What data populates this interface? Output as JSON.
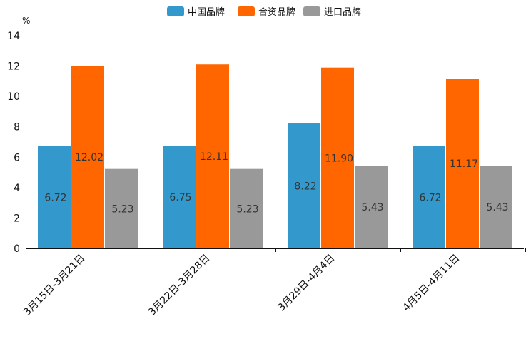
{
  "chart_data": {
    "type": "bar",
    "ylabel": "%",
    "ylim": [
      0,
      14
    ],
    "yticks": [
      0,
      2,
      4,
      6,
      8,
      10,
      12,
      14
    ],
    "categories": [
      "3月15日-3月21日",
      "3月22日-3月28日",
      "3月29日-4月4日",
      "4月5日-4月11日"
    ],
    "series": [
      {
        "name": "中国品牌",
        "color": "#3399cc",
        "values": [
          6.72,
          6.75,
          8.22,
          6.72
        ],
        "labels": [
          "6.72",
          "6.75",
          "8.22",
          "6.72"
        ]
      },
      {
        "name": "合资品牌",
        "color": "#ff6600",
        "values": [
          12.02,
          12.11,
          11.9,
          11.17
        ],
        "labels": [
          "12.02",
          "12.11",
          "11.90",
          "11.17"
        ]
      },
      {
        "name": "进口品牌",
        "color": "#999999",
        "values": [
          5.23,
          5.23,
          5.43,
          5.43
        ],
        "labels": [
          "5.23",
          "5.23",
          "5.43",
          "5.43"
        ]
      }
    ],
    "legend_position": "top-center",
    "grid": false
  }
}
